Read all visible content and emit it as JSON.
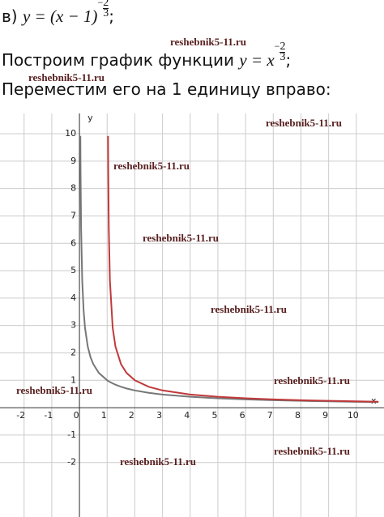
{
  "problem": {
    "label": "в)",
    "formula": "y = (x − 1)",
    "exponent_sign": "−",
    "exponent_num": "2",
    "exponent_den": "3",
    "end": ";"
  },
  "step1": {
    "text": "Построим график функции ",
    "formula": "y = x",
    "exponent_sign": "−",
    "exponent_num": "2",
    "exponent_den": "3",
    "end": ";"
  },
  "step2": {
    "text": "Переместим его на 1 единицу вправо:"
  },
  "watermarks": [
    "reshebnik5-11.ru",
    "reshebnik5-11.ru",
    "reshebnik5-11.ru",
    "reshebnik5-11.ru",
    "reshebnik5-11.ru",
    "reshebnik5-11.ru",
    "reshebnik5-11.ru",
    "reshebnik5-11.ru",
    "reshebnik5-11.ru",
    "reshebnik5-11.ru"
  ],
  "chart_data": {
    "type": "line",
    "x_label": "x",
    "y_label": "y",
    "x": [
      0.032,
      0.04,
      0.06,
      0.1,
      0.15,
      0.2,
      0.3,
      0.4,
      0.5,
      0.7,
      1,
      1.032,
      1.04,
      1.06,
      1.1,
      1.2,
      1.3,
      1.5,
      1.7,
      2,
      2.5,
      3,
      4,
      5,
      6,
      7,
      8,
      9,
      10,
      10.8
    ],
    "series": [
      {
        "color": "#777777",
        "values": [
          9.92,
          8.55,
          6.53,
          4.64,
          3.55,
          2.92,
          2.23,
          1.84,
          1.59,
          1.27,
          1,
          0.979,
          0.974,
          0.962,
          0.938,
          0.886,
          0.839,
          0.763,
          0.702,
          0.63,
          0.543,
          0.481,
          0.397,
          0.342,
          0.303,
          0.273,
          0.25,
          0.231,
          0.215,
          0.205
        ]
      },
      {
        "color": "#c0393b",
        "values": [
          null,
          null,
          null,
          null,
          null,
          null,
          null,
          null,
          null,
          null,
          null,
          9.92,
          8.55,
          6.53,
          4.64,
          2.92,
          2.23,
          1.59,
          1.27,
          1,
          0.763,
          0.63,
          0.481,
          0.397,
          0.342,
          0.303,
          0.273,
          0.25,
          0.231,
          0.218
        ]
      }
    ],
    "xlim": [
      -2.87,
      11
    ],
    "ylim": [
      -3.99,
      10.74
    ],
    "xticks": [
      -2,
      -1,
      0,
      1,
      2,
      3,
      4,
      5,
      6,
      7,
      8,
      9,
      10
    ],
    "yticks": [
      -2,
      -1,
      1,
      2,
      3,
      4,
      5,
      6,
      7,
      8,
      9,
      10
    ],
    "grid": true
  }
}
